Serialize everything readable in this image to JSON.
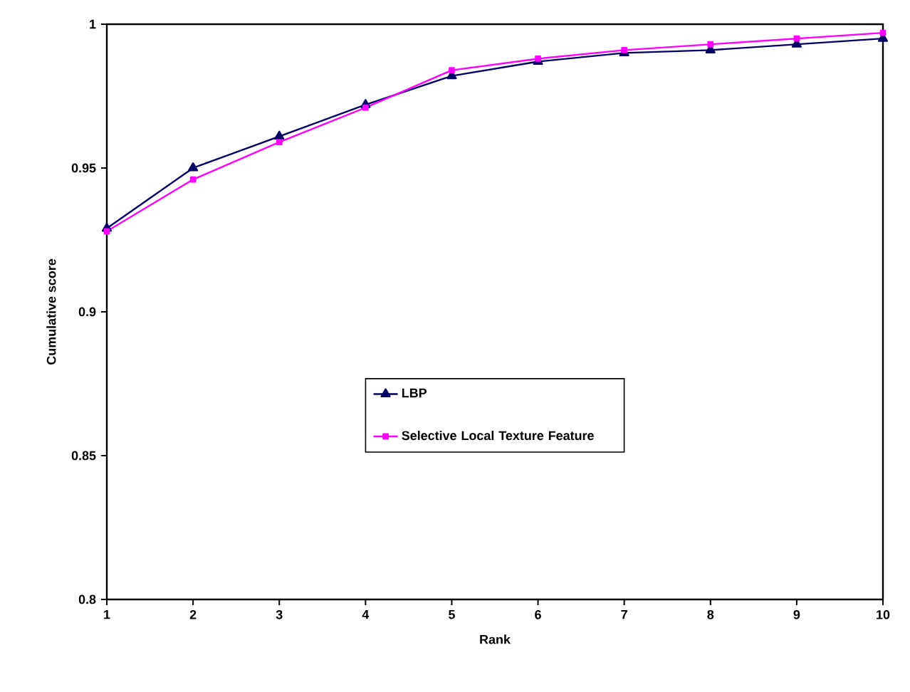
{
  "chart_data": {
    "type": "line",
    "xlabel": "Rank",
    "ylabel": "Cumulative score",
    "x": [
      1,
      2,
      3,
      4,
      5,
      6,
      7,
      8,
      9,
      10
    ],
    "series": [
      {
        "name": "LBP",
        "color": "#000066",
        "marker": "triangle",
        "values": [
          0.929,
          0.95,
          0.961,
          0.972,
          0.982,
          0.987,
          0.99,
          0.991,
          0.993,
          0.995
        ]
      },
      {
        "name": "Selective Local Texture Feature",
        "color": "#ff00ff",
        "marker": "square",
        "values": [
          0.928,
          0.946,
          0.959,
          0.971,
          0.984,
          0.988,
          0.991,
          0.993,
          0.995,
          0.997
        ]
      }
    ],
    "xlim": [
      1,
      10
    ],
    "ylim": [
      0.8,
      1
    ],
    "xticks": [
      1,
      2,
      3,
      4,
      5,
      6,
      7,
      8,
      9,
      10
    ],
    "yticks": [
      0.8,
      0.85,
      0.9,
      0.95,
      1
    ],
    "grid": false,
    "legend": "center",
    "line_style": "solid"
  }
}
